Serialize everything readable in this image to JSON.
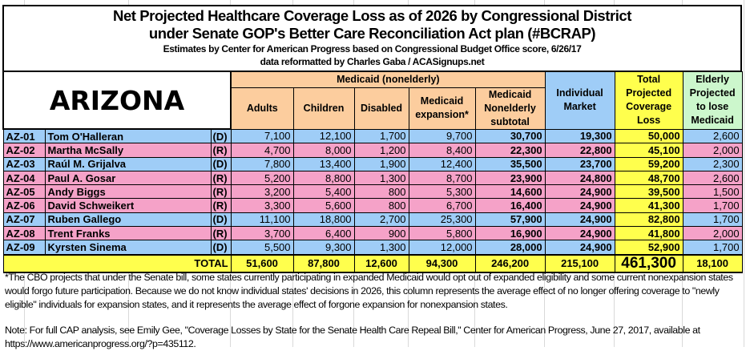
{
  "title": {
    "line1": "Net Projected Healthcare Coverage Loss as of 2026 by Congressional District",
    "line2": "under Senate GOP's Better Care Reconciliation Act plan (#BCRAP)",
    "line3": "Estimates by Center for American Progress based on Congressional Budget Office score, 6/26/17",
    "line4": "data reformatted by Charles Gaba / ACASignups.net"
  },
  "state": "ARIZONA",
  "headers": {
    "medicaid_group": "Medicaid (nonelderly)",
    "adults": "Adults",
    "children": "Children",
    "disabled": "Disabled",
    "expansion": "Medicaid expansion*",
    "subtotal": "Medicaid Nonelderly subtotal",
    "individual": "Individual Market",
    "total": "Total Projected Coverage Loss",
    "elderly": "Elderly Projected to lose Medicaid"
  },
  "colors": {
    "democrat": "#9fcdf7",
    "republican": "#f5a2c8",
    "medicaid_header": "#fccd9e",
    "total": "#ffff4d",
    "elderly_header": "#ccf7cc"
  },
  "rows": [
    {
      "district": "AZ-01",
      "name": "Tom O'Halleran",
      "party": "(D)",
      "adults": "7,100",
      "children": "12,100",
      "disabled": "1,700",
      "expansion": "9,700",
      "subtotal": "30,700",
      "individual": "19,300",
      "total": "50,000",
      "elderly": "2,600"
    },
    {
      "district": "AZ-02",
      "name": "Martha McSally",
      "party": "(R)",
      "adults": "4,700",
      "children": "8,000",
      "disabled": "1,200",
      "expansion": "8,400",
      "subtotal": "22,300",
      "individual": "22,800",
      "total": "45,100",
      "elderly": "2,000"
    },
    {
      "district": "AZ-03",
      "name": "Raúl M. Grijalva",
      "party": "(D)",
      "adults": "7,800",
      "children": "13,400",
      "disabled": "1,900",
      "expansion": "12,400",
      "subtotal": "35,500",
      "individual": "23,700",
      "total": "59,200",
      "elderly": "2,300"
    },
    {
      "district": "AZ-04",
      "name": "Paul A. Gosar",
      "party": "(R)",
      "adults": "5,200",
      "children": "8,800",
      "disabled": "1,300",
      "expansion": "8,700",
      "subtotal": "23,900",
      "individual": "24,800",
      "total": "48,700",
      "elderly": "2,600"
    },
    {
      "district": "AZ-05",
      "name": "Andy Biggs",
      "party": "(R)",
      "adults": "3,200",
      "children": "5,400",
      "disabled": "800",
      "expansion": "5,300",
      "subtotal": "14,600",
      "individual": "24,900",
      "total": "39,500",
      "elderly": "1,500"
    },
    {
      "district": "AZ-06",
      "name": "David Schweikert",
      "party": "(R)",
      "adults": "3,300",
      "children": "5,600",
      "disabled": "800",
      "expansion": "6,700",
      "subtotal": "16,400",
      "individual": "24,900",
      "total": "41,300",
      "elderly": "1,700"
    },
    {
      "district": "AZ-07",
      "name": "Ruben Gallego",
      "party": "(D)",
      "adults": "11,100",
      "children": "18,800",
      "disabled": "2,700",
      "expansion": "25,300",
      "subtotal": "57,900",
      "individual": "24,900",
      "total": "82,800",
      "elderly": "1,700"
    },
    {
      "district": "AZ-08",
      "name": "Trent Franks",
      "party": "(R)",
      "adults": "3,700",
      "children": "6,400",
      "disabled": "900",
      "expansion": "5,800",
      "subtotal": "16,900",
      "individual": "24,900",
      "total": "41,800",
      "elderly": "2,000"
    },
    {
      "district": "AZ-09",
      "name": "Kyrsten Sinema",
      "party": "(D)",
      "adults": "5,500",
      "children": "9,300",
      "disabled": "1,300",
      "expansion": "12,000",
      "subtotal": "28,000",
      "individual": "24,900",
      "total": "52,900",
      "elderly": "1,700"
    }
  ],
  "totals": {
    "label": "TOTAL",
    "adults": "51,600",
    "children": "87,800",
    "disabled": "12,600",
    "expansion": "94,300",
    "subtotal": "246,200",
    "individual": "215,100",
    "total": "461,300",
    "elderly": "18,100"
  },
  "footnote": "*The CBO projects that under the Senate bill, some states currently participating in expanded Medicaid would opt out of expanded eligibility and some current nonexpansion states would forgo future participation. Because we do not know individual states' decisions in 2026, this column represents the average effect of no longer offering coverage to \"newly eligible\" individuals for expansion states, and it represents the average effect of forgone expansion for nonexpansion states.",
  "note": "Note: For full CAP analysis, see Emily Gee, \"Coverage Losses by State for the Senate Health Care Repeal Bill,\" Center for American Progress, June 27, 2017, available at https://www.americanprogress.org/?p=435112."
}
